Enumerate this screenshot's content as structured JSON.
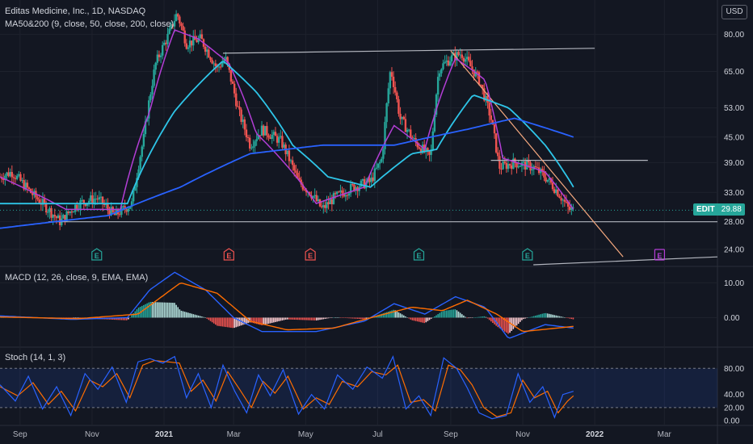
{
  "header": {
    "title": "Editas Medicine, Inc., 1D, NASDAQ",
    "ma_indicator": "MA50&200 (9, close, 50, close, 200, close)",
    "currency": "USD"
  },
  "last_price": {
    "symbol": "EDIT",
    "value": "29.88"
  },
  "colors": {
    "background": "#131722",
    "up": "#26a69a",
    "down": "#ef5350",
    "ma9": "#b33ed6",
    "ma50": "#2ec5e8",
    "ma200": "#2962ff",
    "macd_line": "#2962ff",
    "signal_line": "#ff6d00",
    "stoch_k": "#2962ff",
    "stoch_d": "#ff6d00",
    "trendline": "#b2b5be",
    "downtrend": "#f5a97f"
  },
  "chart_data": [
    {
      "type": "candlestick",
      "title": "Editas Medicine, Inc., 1D, NASDAQ",
      "y_ticks": [
        "80.00",
        "65.00",
        "53.00",
        "45.00",
        "39.00",
        "33.00",
        "28.00",
        "24.00"
      ],
      "y_scale": "log",
      "x_ticks": [
        "Sep",
        "Nov",
        "2021",
        "Mar",
        "May",
        "Jul",
        "Sep",
        "Nov",
        "2022",
        "Mar"
      ],
      "x_start": "2020-08-15",
      "x_end": "2022-04-15",
      "ylim": [
        22,
        97
      ],
      "close_path": [
        [
          "2020-08-15",
          36
        ],
        [
          "2020-08-25",
          37
        ],
        [
          "2020-09-10",
          33
        ],
        [
          "2020-09-25",
          30
        ],
        [
          "2020-10-05",
          28
        ],
        [
          "2020-10-20",
          31
        ],
        [
          "2020-11-05",
          32
        ],
        [
          "2020-11-20",
          29
        ],
        [
          "2020-12-05",
          31
        ],
        [
          "2020-12-15",
          45
        ],
        [
          "2020-12-25",
          68
        ],
        [
          "2021-01-05",
          80
        ],
        [
          "2021-01-12",
          90
        ],
        [
          "2021-01-20",
          76
        ],
        [
          "2021-02-01",
          78
        ],
        [
          "2021-02-15",
          66
        ],
        [
          "2021-02-22",
          70
        ],
        [
          "2021-03-05",
          52
        ],
        [
          "2021-03-15",
          43
        ],
        [
          "2021-03-25",
          47
        ],
        [
          "2021-04-10",
          44
        ],
        [
          "2021-04-25",
          35
        ],
        [
          "2021-05-05",
          33
        ],
        [
          "2021-05-15",
          30
        ],
        [
          "2021-05-25",
          32
        ],
        [
          "2021-06-10",
          34
        ],
        [
          "2021-06-25",
          35
        ],
        [
          "2021-07-05",
          40
        ],
        [
          "2021-07-12",
          66
        ],
        [
          "2021-07-20",
          50
        ],
        [
          "2021-08-01",
          44
        ],
        [
          "2021-08-15",
          40
        ],
        [
          "2021-08-22",
          66
        ],
        [
          "2021-09-01",
          70
        ],
        [
          "2021-09-10",
          72
        ],
        [
          "2021-09-25",
          62
        ],
        [
          "2021-10-05",
          50
        ],
        [
          "2021-10-12",
          38
        ],
        [
          "2021-10-25",
          39
        ],
        [
          "2021-11-10",
          38
        ],
        [
          "2021-11-20",
          36
        ],
        [
          "2021-12-01",
          33
        ],
        [
          "2021-12-10",
          30
        ],
        [
          "2021-12-14",
          29.88
        ]
      ],
      "ma_series": [
        {
          "name": "MA 9",
          "points": [
            [
              "2020-08-15",
              36
            ],
            [
              "2020-10-10",
              30
            ],
            [
              "2020-11-25",
              30
            ],
            [
              "2020-12-20",
              52
            ],
            [
              "2021-01-10",
              82
            ],
            [
              "2021-01-30",
              78
            ],
            [
              "2021-02-25",
              68
            ],
            [
              "2021-03-20",
              46
            ],
            [
              "2021-05-10",
              31
            ],
            [
              "2021-06-20",
              34
            ],
            [
              "2021-07-15",
              48
            ],
            [
              "2021-08-10",
              42
            ],
            [
              "2021-09-05",
              70
            ],
            [
              "2021-09-30",
              62
            ],
            [
              "2021-10-15",
              40
            ],
            [
              "2021-11-20",
              37
            ],
            [
              "2021-12-14",
              30
            ]
          ]
        },
        {
          "name": "MA 50",
          "points": [
            [
              "2020-08-15",
              31
            ],
            [
              "2020-10-15",
              31
            ],
            [
              "2020-12-01",
              31
            ],
            [
              "2021-01-10",
              52
            ],
            [
              "2021-02-20",
              69
            ],
            [
              "2021-03-20",
              58
            ],
            [
              "2021-04-20",
              43
            ],
            [
              "2021-05-20",
              36
            ],
            [
              "2021-06-25",
              34
            ],
            [
              "2021-07-30",
              41
            ],
            [
              "2021-08-20",
              42
            ],
            [
              "2021-09-20",
              57
            ],
            [
              "2021-10-20",
              53
            ],
            [
              "2021-11-20",
              43
            ],
            [
              "2021-12-14",
              34
            ]
          ]
        },
        {
          "name": "MA 200",
          "points": [
            [
              "2020-08-15",
              27
            ],
            [
              "2020-11-15",
              29
            ],
            [
              "2021-01-15",
              34
            ],
            [
              "2021-03-15",
              41
            ],
            [
              "2021-05-15",
              43
            ],
            [
              "2021-07-15",
              43
            ],
            [
              "2021-09-15",
              47
            ],
            [
              "2021-10-25",
              50
            ],
            [
              "2021-12-14",
              45
            ]
          ]
        }
      ],
      "trendlines": [
        {
          "from": [
            "2021-02-20",
            72
          ],
          "to": [
            "2022-01-01",
            74
          ]
        },
        {
          "from": [
            "2020-09-25",
            28
          ],
          "to": [
            "2022-04-15",
            28
          ]
        },
        {
          "from": [
            "2021-10-05",
            39.5
          ],
          "to": [
            "2022-02-15",
            39.5
          ]
        },
        {
          "from": [
            "2021-11-10",
            22
          ],
          "to": [
            "2022-04-15",
            23
          ]
        },
        {
          "from": [
            "2021-09-01",
            73
          ],
          "to": [
            "2022-01-25",
            23
          ],
          "style": "downtrend"
        }
      ],
      "events": [
        {
          "date": "2020-11-05",
          "label": "E",
          "kind": "earnings"
        },
        {
          "date": "2021-02-25",
          "label": "E",
          "kind": "earnings-miss"
        },
        {
          "date": "2021-05-05",
          "label": "E",
          "kind": "earnings-miss"
        },
        {
          "date": "2021-08-05",
          "label": "E",
          "kind": "earnings"
        },
        {
          "date": "2021-11-05",
          "label": "E",
          "kind": "earnings"
        },
        {
          "date": "2022-02-25",
          "label": "E",
          "kind": "upcoming"
        }
      ]
    },
    {
      "type": "histogram+line",
      "title": "MACD (12, 26, close, 9, EMA, EMA)",
      "y_ticks": [
        "10.00",
        "0.00"
      ],
      "ylim": [
        -8,
        14
      ],
      "series": [
        {
          "name": "MACD",
          "points": [
            [
              "2020-08-15",
              0.5
            ],
            [
              "2020-10-15",
              -0.5
            ],
            [
              "2020-12-01",
              0
            ],
            [
              "2020-12-20",
              8
            ],
            [
              "2021-01-10",
              13
            ],
            [
              "2021-02-05",
              8
            ],
            [
              "2021-03-01",
              0
            ],
            [
              "2021-03-25",
              -4
            ],
            [
              "2021-05-10",
              -4
            ],
            [
              "2021-06-20",
              -1
            ],
            [
              "2021-07-15",
              4
            ],
            [
              "2021-08-10",
              1
            ],
            [
              "2021-09-05",
              6
            ],
            [
              "2021-09-30",
              3
            ],
            [
              "2021-10-20",
              -6
            ],
            [
              "2021-11-20",
              -2
            ],
            [
              "2021-12-14",
              -3
            ]
          ]
        },
        {
          "name": "Signal",
          "points": [
            [
              "2020-08-15",
              0.2
            ],
            [
              "2020-10-20",
              -0.3
            ],
            [
              "2020-12-10",
              1
            ],
            [
              "2021-01-15",
              10
            ],
            [
              "2021-02-15",
              7
            ],
            [
              "2021-03-15",
              -1
            ],
            [
              "2021-04-15",
              -3.5
            ],
            [
              "2021-05-25",
              -3
            ],
            [
              "2021-07-01",
              0.5
            ],
            [
              "2021-07-30",
              3
            ],
            [
              "2021-08-25",
              2
            ],
            [
              "2021-09-15",
              5
            ],
            [
              "2021-10-10",
              1
            ],
            [
              "2021-11-01",
              -4
            ],
            [
              "2021-12-14",
              -2.5
            ]
          ]
        }
      ]
    },
    {
      "type": "line",
      "title": "Stoch (14, 1, 3)",
      "y_ticks": [
        "80.00",
        "40.00",
        "20.00",
        "0.00"
      ],
      "ylim": [
        -6,
        110
      ],
      "bands": [
        20,
        80
      ],
      "series": [
        {
          "name": "%K",
          "points": [
            [
              "2020-08-15",
              55
            ],
            [
              "2020-08-28",
              30
            ],
            [
              "2020-09-08",
              68
            ],
            [
              "2020-09-20",
              18
            ],
            [
              "2020-10-02",
              52
            ],
            [
              "2020-10-14",
              8
            ],
            [
              "2020-10-26",
              72
            ],
            [
              "2020-11-06",
              48
            ],
            [
              "2020-11-18",
              82
            ],
            [
              "2020-11-30",
              28
            ],
            [
              "2020-12-10",
              90
            ],
            [
              "2020-12-20",
              95
            ],
            [
              "2020-12-31",
              88
            ],
            [
              "2021-01-10",
              98
            ],
            [
              "2021-01-20",
              35
            ],
            [
              "2021-01-30",
              72
            ],
            [
              "2021-02-10",
              20
            ],
            [
              "2021-02-20",
              85
            ],
            [
              "2021-03-02",
              45
            ],
            [
              "2021-03-12",
              12
            ],
            [
              "2021-03-22",
              70
            ],
            [
              "2021-04-01",
              38
            ],
            [
              "2021-04-12",
              78
            ],
            [
              "2021-04-25",
              10
            ],
            [
              "2021-05-06",
              40
            ],
            [
              "2021-05-17",
              18
            ],
            [
              "2021-05-28",
              70
            ],
            [
              "2021-06-10",
              48
            ],
            [
              "2021-06-22",
              82
            ],
            [
              "2021-07-05",
              65
            ],
            [
              "2021-07-14",
              98
            ],
            [
              "2021-07-25",
              18
            ],
            [
              "2021-08-05",
              38
            ],
            [
              "2021-08-15",
              8
            ],
            [
              "2021-08-26",
              96
            ],
            [
              "2021-09-06",
              80
            ],
            [
              "2021-09-15",
              50
            ],
            [
              "2021-09-25",
              12
            ],
            [
              "2021-10-06",
              3
            ],
            [
              "2021-10-18",
              8
            ],
            [
              "2021-10-28",
              72
            ],
            [
              "2021-11-07",
              28
            ],
            [
              "2021-11-18",
              52
            ],
            [
              "2021-11-28",
              5
            ],
            [
              "2021-12-05",
              40
            ],
            [
              "2021-12-14",
              45
            ]
          ]
        },
        {
          "name": "%D",
          "points": [
            [
              "2020-08-15",
              52
            ],
            [
              "2020-08-30",
              38
            ],
            [
              "2020-09-12",
              58
            ],
            [
              "2020-09-25",
              25
            ],
            [
              "2020-10-06",
              45
            ],
            [
              "2020-10-18",
              15
            ],
            [
              "2020-10-30",
              62
            ],
            [
              "2020-11-10",
              52
            ],
            [
              "2020-11-22",
              72
            ],
            [
              "2020-12-03",
              35
            ],
            [
              "2020-12-14",
              85
            ],
            [
              "2020-12-24",
              92
            ],
            [
              "2021-01-04",
              90
            ],
            [
              "2021-01-14",
              88
            ],
            [
              "2021-01-24",
              45
            ],
            [
              "2021-02-03",
              62
            ],
            [
              "2021-02-14",
              30
            ],
            [
              "2021-02-24",
              75
            ],
            [
              "2021-03-06",
              48
            ],
            [
              "2021-03-16",
              20
            ],
            [
              "2021-03-26",
              60
            ],
            [
              "2021-04-05",
              42
            ],
            [
              "2021-04-16",
              68
            ],
            [
              "2021-04-29",
              18
            ],
            [
              "2021-05-10",
              35
            ],
            [
              "2021-05-21",
              25
            ],
            [
              "2021-06-01",
              60
            ],
            [
              "2021-06-14",
              52
            ],
            [
              "2021-06-26",
              75
            ],
            [
              "2021-07-08",
              70
            ],
            [
              "2021-07-18",
              85
            ],
            [
              "2021-07-29",
              28
            ],
            [
              "2021-08-09",
              32
            ],
            [
              "2021-08-19",
              15
            ],
            [
              "2021-08-30",
              85
            ],
            [
              "2021-09-09",
              78
            ],
            [
              "2021-09-19",
              55
            ],
            [
              "2021-09-29",
              20
            ],
            [
              "2021-10-10",
              6
            ],
            [
              "2021-10-22",
              12
            ],
            [
              "2021-11-01",
              62
            ],
            [
              "2021-11-11",
              35
            ],
            [
              "2021-11-22",
              45
            ],
            [
              "2021-12-01",
              12
            ],
            [
              "2021-12-09",
              30
            ],
            [
              "2021-12-14",
              38
            ]
          ]
        }
      ]
    }
  ]
}
